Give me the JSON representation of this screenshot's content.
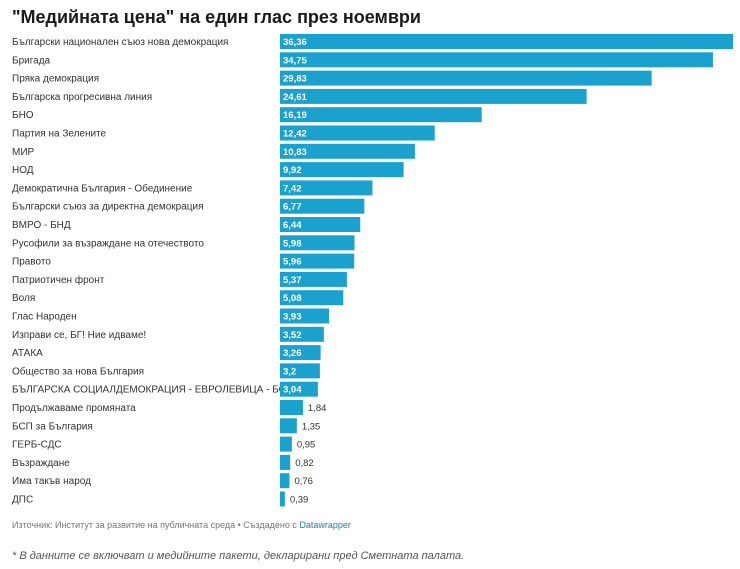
{
  "chart_data": {
    "type": "bar",
    "orientation": "horizontal",
    "title": "\"Медийната цена\" на един глас през ноември",
    "categories": [
      "Български национален съюз нова демокрация",
      "Бригада",
      "Пряка демокрация",
      "Българска прогресивна линия",
      "БНО",
      "Партия на Зелените",
      "МИР",
      "НОД",
      "Демократична България - Обединение",
      "Български съюз за директна демокрация",
      "ВМРО - БНД",
      "Русофили за възраждане на отечеството",
      "Правото",
      "Патриотичен фронт",
      "Воля",
      "Глас Народен",
      "Изправи се, БГ! Ние идваме!",
      "АТАКА",
      "Общество за нова България",
      "БЪЛГАРСКА СОЦИАЛДЕМОКРАЦИЯ - ЕВРОЛЕВИЦА - БСДЕ",
      "Продължаваме промяната",
      "БСП за България",
      "ГЕРБ-СДС",
      "Възраждане",
      "Има такъв народ",
      "ДПС"
    ],
    "values": [
      36.36,
      34.75,
      29.83,
      24.61,
      16.19,
      12.42,
      10.83,
      9.92,
      7.42,
      6.77,
      6.44,
      5.98,
      5.96,
      5.37,
      5.08,
      3.93,
      3.52,
      3.26,
      3.2,
      3.04,
      1.84,
      1.35,
      0.95,
      0.82,
      0.76,
      0.39
    ],
    "value_labels": [
      "36,36",
      "34,75",
      "29,83",
      "24,61",
      "16,19",
      "12,42",
      "10,83",
      "9,92",
      "7,42",
      "6,77",
      "6,44",
      "5,98",
      "5,96",
      "5,37",
      "5,08",
      "3,93",
      "3,52",
      "3,26",
      "3,2",
      "3,04",
      "1,84",
      "1,35",
      "0,95",
      "0,82",
      "0,76",
      "0,39"
    ],
    "xlim": [
      0,
      36.36
    ],
    "xlabel": "",
    "ylabel": "",
    "grid": false,
    "bar_color": "#1aa1ce",
    "label_inside_color": "#ffffff",
    "label_outside_color": "#333333"
  },
  "footer": {
    "source_text": "Източник: Институт за развитие на публичната среда • Създадено с ",
    "source_link": "Datawrapper",
    "note": "* В данните се включват и медийните пакети, декларирани пред Сметната палата."
  }
}
